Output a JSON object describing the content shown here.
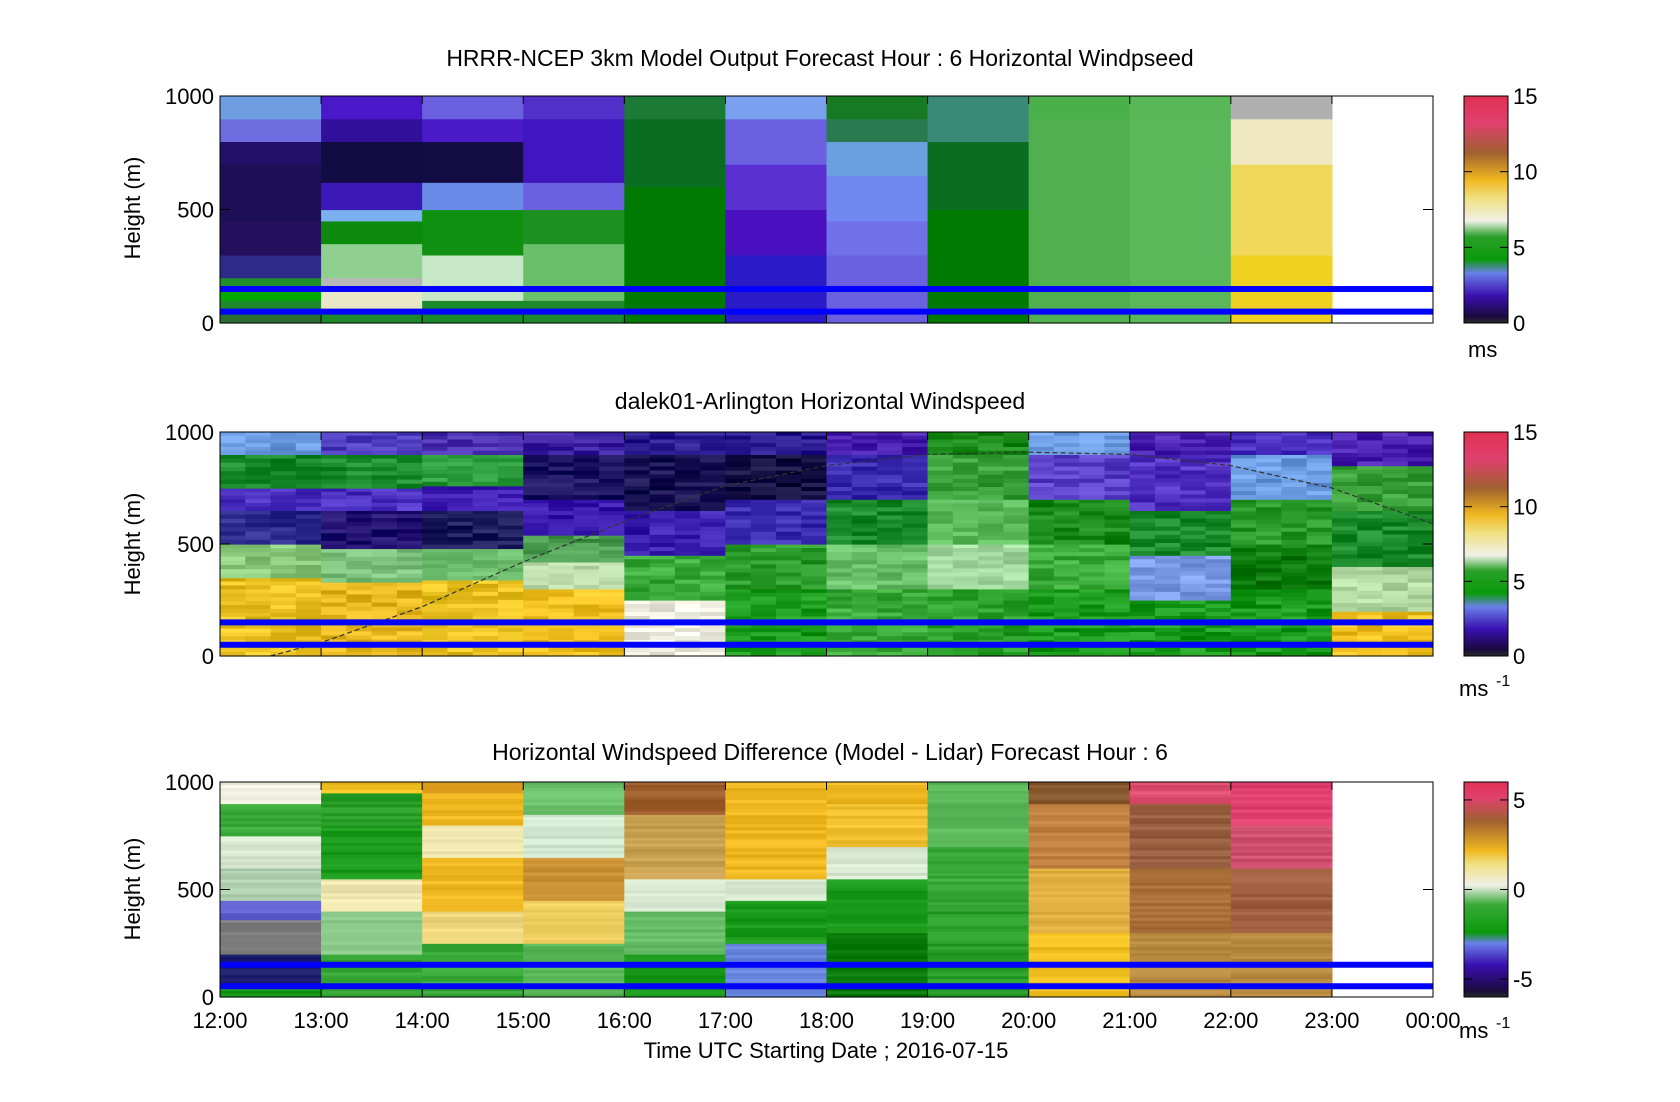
{
  "time_axis": {
    "tick_labels": [
      "12:00",
      "13:00",
      "14:00",
      "15:00",
      "16:00",
      "17:00",
      "18:00",
      "19:00",
      "20:00",
      "21:00",
      "22:00",
      "23:00",
      "00:00"
    ],
    "xlabel": "Time UTC  Starting Date ; 2016-07-15"
  },
  "colors": {
    "reference_lines": "#0000ff",
    "frame": "#000000"
  },
  "chart_data": [
    {
      "type": "heatmap",
      "title": "HRRR-NCEP 3km Model Output   Forecast Hour : 6 Horizontal Windpseed",
      "ylabel": "Height (m)",
      "ylim": [
        0,
        1000
      ],
      "yticks": [
        "0",
        "500",
        "1000"
      ],
      "x": [
        "12:00",
        "13:00",
        "14:00",
        "15:00",
        "16:00",
        "17:00",
        "18:00",
        "19:00",
        "20:00",
        "21:00",
        "22:00",
        "23:00"
      ],
      "colorbar": {
        "ticks": [
          "0",
          "5",
          "10",
          "15"
        ],
        "range": [
          0,
          15
        ],
        "unit": "ms"
      },
      "reference_lines_m": [
        50,
        150
      ],
      "cells": [
        [
          [
            0,
            "#2a6e32"
          ],
          [
            60,
            "#1e8a2c"
          ],
          [
            100,
            "#00aa00"
          ],
          [
            150,
            "#1f8f2c"
          ],
          [
            200,
            "#2d2a8a"
          ],
          [
            300,
            "#25105e"
          ],
          [
            450,
            "#1d0f55"
          ],
          [
            600,
            "#1d0f55"
          ],
          [
            700,
            "#22106a"
          ],
          [
            800,
            "#6e6ee0"
          ],
          [
            900,
            "#6e9ee0"
          ]
        ],
        [
          [
            0,
            "#1e8a2c"
          ],
          [
            60,
            "#e8e8c8"
          ],
          [
            150,
            "#b8b8b8"
          ],
          [
            200,
            "#8fcf8f"
          ],
          [
            350,
            "#0c8a0c"
          ],
          [
            450,
            "#7ab0f0"
          ],
          [
            500,
            "#3c18b8"
          ],
          [
            620,
            "#120c44"
          ],
          [
            800,
            "#30109a"
          ],
          [
            900,
            "#4a18c8"
          ]
        ],
        [
          [
            0,
            "#1a8a2a"
          ],
          [
            100,
            "#c7e8c7"
          ],
          [
            300,
            "#109010"
          ],
          [
            500,
            "#6a8ae8"
          ],
          [
            620,
            "#140c44"
          ],
          [
            800,
            "#4a1ac8"
          ],
          [
            900,
            "#6a60e0"
          ]
        ],
        [
          [
            0,
            "#1f8a2c"
          ],
          [
            100,
            "#6ac06a"
          ],
          [
            350,
            "#1c9020"
          ],
          [
            500,
            "#6a60e0"
          ],
          [
            620,
            "#4016c0"
          ],
          [
            900,
            "#5030c8"
          ]
        ],
        [
          [
            0,
            "#007a00"
          ],
          [
            600,
            "#0a6e20"
          ],
          [
            900,
            "#1a7a36"
          ]
        ],
        [
          [
            0,
            "#2a1ac8"
          ],
          [
            300,
            "#4a10c0"
          ],
          [
            500,
            "#5a30d0"
          ],
          [
            700,
            "#6a60e0"
          ],
          [
            900,
            "#7aa0f0"
          ]
        ],
        [
          [
            0,
            "#6a60e0"
          ],
          [
            300,
            "#7070e8"
          ],
          [
            450,
            "#7088f0"
          ],
          [
            650,
            "#6aa0e0"
          ],
          [
            800,
            "#2a7a50"
          ],
          [
            900,
            "#167a22"
          ]
        ],
        [
          [
            0,
            "#007a00"
          ],
          [
            500,
            "#0a6e20"
          ],
          [
            800,
            "#3a8a78"
          ]
        ],
        [
          [
            0,
            "#50b050"
          ],
          [
            900,
            "#4ab04a"
          ]
        ],
        [
          [
            0,
            "#5ab85a"
          ],
          [
            900,
            "#58b858"
          ]
        ],
        [
          [
            0,
            "#f0d020"
          ],
          [
            300,
            "#f0d85a"
          ],
          [
            700,
            "#f0e8c0"
          ],
          [
            900,
            "#b0b0b0"
          ]
        ],
        []
      ]
    },
    {
      "type": "heatmap",
      "title": "dalek01-Arlington  Horizontal Windspeed",
      "ylabel": "Height (m)",
      "ylim": [
        0,
        1000
      ],
      "yticks": [
        "0",
        "500",
        "1000"
      ],
      "colorbar": {
        "ticks": [
          "0",
          "5",
          "10",
          "15"
        ],
        "range": [
          0,
          15
        ],
        "unit": "ms",
        "unit_exponent": "-1"
      },
      "reference_lines_m": [
        50,
        150
      ],
      "series": [
        {
          "hour": "12:00",
          "profile": [
            [
              0,
              "#e8c020"
            ],
            [
              350,
              "#8ac87a"
            ],
            [
              500,
              "#2a2a8a"
            ],
            [
              650,
              "#4a30c0"
            ],
            [
              750,
              "#1a8a2a"
            ],
            [
              900,
              "#6a9ae0"
            ]
          ]
        },
        {
          "hour": "13:00",
          "profile": [
            [
              0,
              "#e8b820"
            ],
            [
              330,
              "#7ac07a"
            ],
            [
              480,
              "#221070"
            ],
            [
              650,
              "#4a30c0"
            ],
            [
              750,
              "#1a8a2a"
            ],
            [
              900,
              "#5040c0"
            ]
          ]
        },
        {
          "hour": "14:00",
          "profile": [
            [
              0,
              "#e8c020"
            ],
            [
              340,
              "#6ab86a"
            ],
            [
              480,
              "#1a1a5a"
            ],
            [
              650,
              "#3a1ab0"
            ],
            [
              760,
              "#2a9a3a"
            ],
            [
              900,
              "#4a30b0"
            ]
          ]
        },
        {
          "hour": "15:00",
          "profile": [
            [
              0,
              "#f0c020"
            ],
            [
              300,
              "#c0e0b0"
            ],
            [
              420,
              "#4a9a50"
            ],
            [
              540,
              "#3a1ab0"
            ],
            [
              700,
              "#1a1060"
            ],
            [
              900,
              "#3a20a0"
            ]
          ]
        },
        {
          "hour": "16:00",
          "profile": [
            [
              0,
              "#f0f0e0"
            ],
            [
              250,
              "#3aaa3a"
            ],
            [
              450,
              "#3a20b0"
            ],
            [
              650,
              "#160f50"
            ],
            [
              900,
              "#2a1a90"
            ]
          ]
        },
        {
          "hour": "17:00",
          "profile": [
            [
              0,
              "#1a9a1a"
            ],
            [
              300,
              "#2a9a2a"
            ],
            [
              500,
              "#3a2ab0"
            ],
            [
              700,
              "#120c40"
            ],
            [
              900,
              "#2a1a90"
            ]
          ]
        },
        {
          "hour": "18:00",
          "profile": [
            [
              0,
              "#3aaa3a"
            ],
            [
              300,
              "#6ac06a"
            ],
            [
              500,
              "#1a8a2a"
            ],
            [
              700,
              "#3a2ab0"
            ],
            [
              900,
              "#4a20b0"
            ]
          ]
        },
        {
          "hour": "19:00",
          "profile": [
            [
              0,
              "#2aa02a"
            ],
            [
              300,
              "#a0d8a0"
            ],
            [
              500,
              "#5ab85a"
            ],
            [
              700,
              "#3aa03a"
            ],
            [
              900,
              "#1a8a1a"
            ]
          ]
        },
        {
          "hour": "20:00",
          "profile": [
            [
              0,
              "#1a9a1a"
            ],
            [
              300,
              "#3aaa3a"
            ],
            [
              500,
              "#1a8a1a"
            ],
            [
              700,
              "#5a40c8"
            ],
            [
              900,
              "#6a9ae0"
            ]
          ]
        },
        {
          "hour": "21:00",
          "profile": [
            [
              0,
              "#1a9a1a"
            ],
            [
              250,
              "#7a9ae8"
            ],
            [
              450,
              "#1a8a2a"
            ],
            [
              650,
              "#5030c0"
            ],
            [
              900,
              "#4a20b0"
            ]
          ]
        },
        {
          "hour": "22:00",
          "profile": [
            [
              0,
              "#1a9a1a"
            ],
            [
              300,
              "#0a7a0a"
            ],
            [
              500,
              "#2a9a2a"
            ],
            [
              700,
              "#6a9ae0"
            ],
            [
              900,
              "#4a30c0"
            ]
          ]
        },
        {
          "hour": "23:00",
          "profile": [
            [
              0,
              "#f0c020"
            ],
            [
              200,
              "#b0d8a0"
            ],
            [
              400,
              "#1a8a2a"
            ],
            [
              650,
              "#3aa03a"
            ],
            [
              850,
              "#4a20b0"
            ]
          ]
        }
      ],
      "boundary_layer_curve_m": [
        [
          12.5,
          0
        ],
        [
          13,
          60
        ],
        [
          14,
          220
        ],
        [
          15,
          420
        ],
        [
          16,
          600
        ],
        [
          17,
          760
        ],
        [
          18,
          850
        ],
        [
          19,
          900
        ],
        [
          20,
          910
        ],
        [
          21,
          900
        ],
        [
          22,
          850
        ],
        [
          23,
          750
        ],
        [
          24,
          590
        ]
      ]
    },
    {
      "type": "heatmap",
      "title": "Horizontal Windspeed Difference (Model - Lidar) Forecast Hour : 6",
      "ylabel": "Height (m)",
      "ylim": [
        0,
        1000
      ],
      "yticks": [
        "0",
        "500",
        "1000"
      ],
      "colorbar": {
        "ticks": [
          "-5",
          "0",
          "5"
        ],
        "range": [
          -6,
          6
        ],
        "unit": "ms",
        "unit_exponent": "-1"
      },
      "reference_lines_m": [
        50,
        150
      ],
      "cells": [
        [
          [
            0,
            "#1a9a1a"
          ],
          [
            60,
            "#1a1a6a"
          ],
          [
            200,
            "#808080"
          ],
          [
            360,
            "#6060d0"
          ],
          [
            450,
            "#b0d0b0"
          ],
          [
            600,
            "#d8e8d0"
          ],
          [
            750,
            "#3aaa3a"
          ],
          [
            900,
            "#f0f0e0"
          ]
        ],
        [
          [
            0,
            "#3aaa3a"
          ],
          [
            200,
            "#8ac88a"
          ],
          [
            400,
            "#f0e8b0"
          ],
          [
            550,
            "#1a9a1a"
          ],
          [
            800,
            "#2aa02a"
          ],
          [
            950,
            "#f0c020"
          ]
        ],
        [
          [
            0,
            "#3aaa3a"
          ],
          [
            250,
            "#f0d880"
          ],
          [
            400,
            "#f0b820"
          ],
          [
            650,
            "#f0e8b0"
          ],
          [
            800,
            "#f0b820"
          ],
          [
            950,
            "#e0a020"
          ]
        ],
        [
          [
            0,
            "#5ab85a"
          ],
          [
            250,
            "#f0d060"
          ],
          [
            450,
            "#c89030"
          ],
          [
            650,
            "#d0e8d0"
          ],
          [
            850,
            "#6ac06a"
          ]
        ],
        [
          [
            0,
            "#1a9a1a"
          ],
          [
            200,
            "#6ac06a"
          ],
          [
            400,
            "#d8e8d0"
          ],
          [
            550,
            "#c8a050"
          ],
          [
            850,
            "#a06030"
          ]
        ],
        [
          [
            0,
            "#6a88e0"
          ],
          [
            250,
            "#1a9a1a"
          ],
          [
            450,
            "#d8e8d0"
          ],
          [
            550,
            "#f0b820"
          ]
        ],
        [
          [
            0,
            "#0a7a0a"
          ],
          [
            300,
            "#1a9a1a"
          ],
          [
            550,
            "#d8e8d0"
          ],
          [
            700,
            "#f0c030"
          ],
          [
            900,
            "#f0b820"
          ]
        ],
        [
          [
            0,
            "#2aa02a"
          ],
          [
            400,
            "#3aaa3a"
          ],
          [
            700,
            "#5ab85a"
          ]
        ],
        [
          [
            0,
            "#f0c020"
          ],
          [
            300,
            "#e0b040"
          ],
          [
            600,
            "#c08040"
          ],
          [
            900,
            "#8a5a30"
          ]
        ],
        [
          [
            0,
            "#b88a40"
          ],
          [
            300,
            "#a87038"
          ],
          [
            600,
            "#986040"
          ],
          [
            900,
            "#e05070"
          ]
        ],
        [
          [
            0,
            "#b88a40"
          ],
          [
            300,
            "#a06040"
          ],
          [
            600,
            "#d05070"
          ],
          [
            800,
            "#e04070"
          ]
        ],
        []
      ]
    }
  ]
}
